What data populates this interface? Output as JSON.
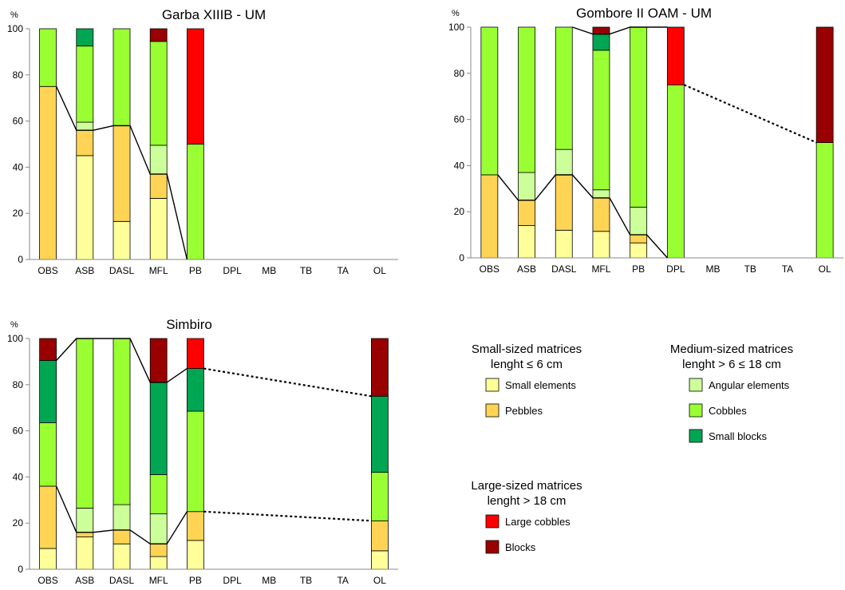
{
  "chart_data": [
    {
      "type": "bar",
      "stacked": true,
      "title": "Garba XIIIB - UM",
      "ylabel": "%",
      "ylim": [
        0,
        100
      ],
      "yticks": [
        "0",
        "20",
        "40",
        "60",
        "80",
        "100"
      ],
      "categories": [
        "OBS",
        "ASB",
        "DASL",
        "MFL",
        "PB",
        "DPL",
        "MB",
        "TB",
        "TA",
        "OL"
      ],
      "series": [
        {
          "name": "Small elements",
          "values": [
            0,
            45,
            16.5,
            26.5,
            0,
            0,
            0,
            0,
            0,
            0
          ]
        },
        {
          "name": "Pebbles",
          "values": [
            75,
            11,
            41.5,
            10.5,
            0,
            0,
            0,
            0,
            0,
            0
          ]
        },
        {
          "name": "Angular elements",
          "values": [
            0,
            3.5,
            0,
            12.5,
            0,
            0,
            0,
            0,
            0,
            0
          ]
        },
        {
          "name": "Cobbles",
          "values": [
            25,
            33,
            42,
            45,
            50,
            0,
            0,
            0,
            0,
            0
          ]
        },
        {
          "name": "Small blocks",
          "values": [
            0,
            7.5,
            0,
            0,
            0,
            0,
            0,
            0,
            0,
            0
          ]
        },
        {
          "name": "Large cobbles",
          "values": [
            0,
            0,
            0,
            0,
            50,
            0,
            0,
            0,
            0,
            0
          ]
        },
        {
          "name": "Blocks",
          "values": [
            0,
            0,
            0,
            5.5,
            0,
            0,
            0,
            0,
            0,
            0
          ]
        }
      ],
      "line_solid": [
        [
          0,
          75
        ],
        [
          1,
          56
        ],
        [
          2,
          58
        ],
        [
          3,
          37
        ],
        [
          4,
          0
        ]
      ],
      "line_dotted": []
    },
    {
      "type": "bar",
      "stacked": true,
      "title": "Gombore II OAM - UM",
      "ylabel": "%",
      "ylim": [
        0,
        100
      ],
      "yticks": [
        "0",
        "20",
        "40",
        "60",
        "80",
        "100"
      ],
      "categories": [
        "OBS",
        "ASB",
        "DASL",
        "MFL",
        "PB",
        "DPL",
        "MB",
        "TB",
        "TA",
        "OL"
      ],
      "series": [
        {
          "name": "Small elements",
          "values": [
            0,
            14,
            12,
            11.5,
            6.5,
            0,
            0,
            0,
            0,
            0
          ]
        },
        {
          "name": "Pebbles",
          "values": [
            36,
            11,
            24,
            14.5,
            3.5,
            0,
            0,
            0,
            0,
            0
          ]
        },
        {
          "name": "Angular elements",
          "values": [
            0,
            12,
            11,
            3.5,
            12,
            0,
            0,
            0,
            0,
            0
          ]
        },
        {
          "name": "Cobbles",
          "values": [
            64,
            63,
            53,
            60.5,
            78,
            75,
            0,
            0,
            0,
            50
          ]
        },
        {
          "name": "Small blocks",
          "values": [
            0,
            0,
            0,
            7,
            0,
            0,
            0,
            0,
            0,
            0
          ]
        },
        {
          "name": "Large cobbles",
          "values": [
            0,
            0,
            0,
            0,
            0,
            25,
            0,
            0,
            0,
            0
          ]
        },
        {
          "name": "Blocks",
          "values": [
            0,
            0,
            0,
            3,
            0,
            0,
            0,
            0,
            0,
            50
          ]
        }
      ],
      "line_solid": [
        [
          0,
          36
        ],
        [
          1,
          25
        ],
        [
          2,
          36
        ],
        [
          3,
          26
        ],
        [
          4,
          10
        ],
        [
          5,
          0
        ]
      ],
      "line_solid_top": [
        [
          2,
          100
        ],
        [
          3,
          97
        ],
        [
          4,
          100
        ],
        [
          5,
          100
        ]
      ],
      "line_dotted": [
        [
          5,
          75
        ],
        [
          9,
          50
        ]
      ]
    },
    {
      "type": "bar",
      "stacked": true,
      "title": "Simbiro",
      "ylabel": "%",
      "ylim": [
        0,
        100
      ],
      "yticks": [
        "0",
        "20",
        "40",
        "60",
        "80",
        "100"
      ],
      "categories": [
        "OBS",
        "ASB",
        "DASL",
        "MFL",
        "PB",
        "DPL",
        "MB",
        "TB",
        "TA",
        "OL"
      ],
      "series": [
        {
          "name": "Small elements",
          "values": [
            9,
            14,
            11,
            5.5,
            12.5,
            0,
            0,
            0,
            0,
            8
          ]
        },
        {
          "name": "Pebbles",
          "values": [
            27,
            2,
            6,
            5.5,
            12.5,
            0,
            0,
            0,
            0,
            13
          ]
        },
        {
          "name": "Angular elements",
          "values": [
            0,
            10.5,
            11,
            13,
            0,
            0,
            0,
            0,
            0,
            0
          ]
        },
        {
          "name": "Cobbles",
          "values": [
            27.5,
            73.5,
            72,
            17,
            43.5,
            0,
            0,
            0,
            0,
            21
          ]
        },
        {
          "name": "Small blocks",
          "values": [
            27,
            0,
            0,
            40,
            18.5,
            0,
            0,
            0,
            0,
            33
          ]
        },
        {
          "name": "Large cobbles",
          "values": [
            0,
            0,
            0,
            0,
            13,
            0,
            0,
            0,
            0,
            0
          ]
        },
        {
          "name": "Blocks",
          "values": [
            9.5,
            0,
            0,
            19,
            0,
            0,
            0,
            0,
            0,
            25
          ]
        }
      ],
      "line_solid": [
        [
          0,
          36
        ],
        [
          1,
          16
        ],
        [
          2,
          17
        ],
        [
          3,
          11
        ],
        [
          4,
          25
        ]
      ],
      "line_solid_top": [
        [
          0,
          90.5
        ],
        [
          1,
          100
        ],
        [
          2,
          100
        ],
        [
          3,
          81
        ],
        [
          4,
          87
        ]
      ],
      "line_dotted": [
        [
          4,
          25
        ],
        [
          9,
          21
        ]
      ],
      "line_dotted_top": [
        [
          4,
          87
        ],
        [
          9,
          75
        ]
      ]
    }
  ],
  "colors": {
    "Small elements": "#ffff99",
    "Pebbles": "#ffd454",
    "Angular elements": "#ccff99",
    "Cobbles": "#99ff33",
    "Small blocks": "#00a651",
    "Large cobbles": "#ff0000",
    "Blocks": "#990000"
  },
  "legend": {
    "groups": [
      {
        "title_1": "Small-sized matrices",
        "title_2": "lenght ≤ 6 cm",
        "items": [
          "Small elements",
          "Pebbles"
        ]
      },
      {
        "title_1": "Medium-sized matrices",
        "title_2": "lenght > 6 ≤ 18 cm",
        "items": [
          "Angular elements",
          "Cobbles",
          "Small blocks"
        ]
      },
      {
        "title_1": "Large-sized matrices",
        "title_2": "lenght > 18 cm",
        "items": [
          "Large cobbles",
          "Blocks"
        ]
      }
    ]
  }
}
